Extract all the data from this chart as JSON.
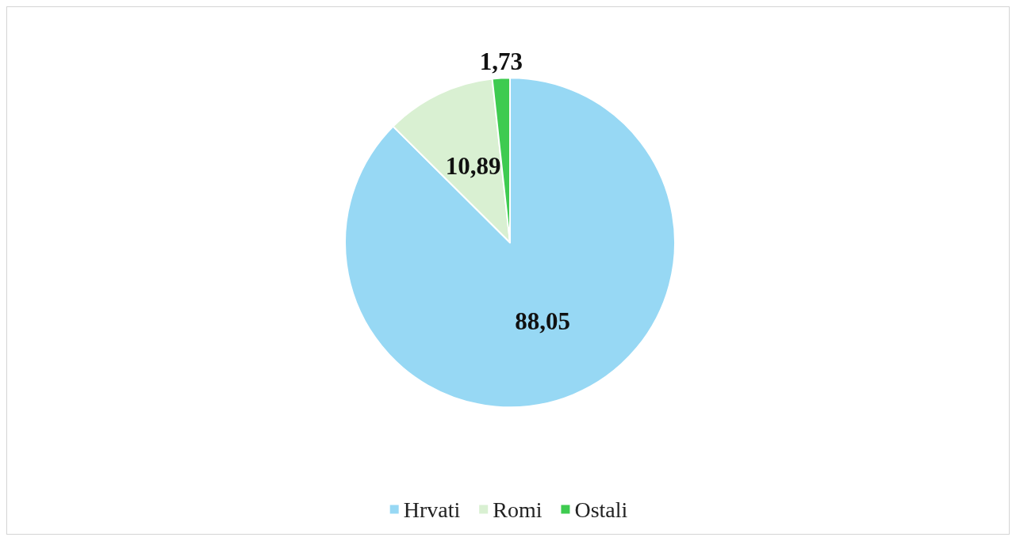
{
  "chart_data": {
    "type": "pie",
    "categories": [
      "Hrvati",
      "Romi",
      "Ostali"
    ],
    "values": [
      88.05,
      10.89,
      1.73
    ],
    "value_labels": [
      "88,05",
      "10,89",
      "1,73"
    ],
    "colors": [
      "#97d8f4",
      "#d9f0d2",
      "#3ecb50"
    ],
    "legend": "bottom"
  }
}
